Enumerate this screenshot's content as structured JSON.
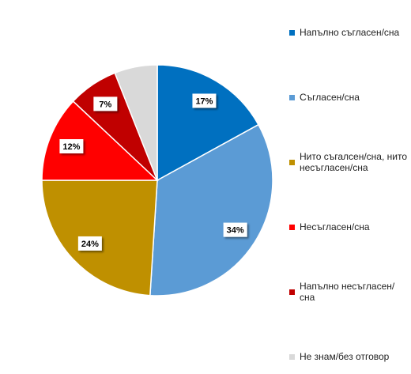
{
  "chart_data": {
    "type": "pie",
    "categories": [
      "Напълно съгласен/сна",
      "Съгласен/сна",
      "Нито съгалсен/сна, нито несъгласен/сна",
      "Несъгласен/сна",
      "Напълно несъгласен/сна",
      "Не знам/без отговор"
    ],
    "values": [
      17,
      34,
      24,
      12,
      7,
      6
    ],
    "value_labels": [
      "17%",
      "34%",
      "24%",
      "12%",
      "7%",
      null
    ],
    "colors": [
      "#0070c0",
      "#5b9bd5",
      "#bf9000",
      "#ff0000",
      "#c00000",
      "#d9d9d9"
    ],
    "legend": "right"
  }
}
